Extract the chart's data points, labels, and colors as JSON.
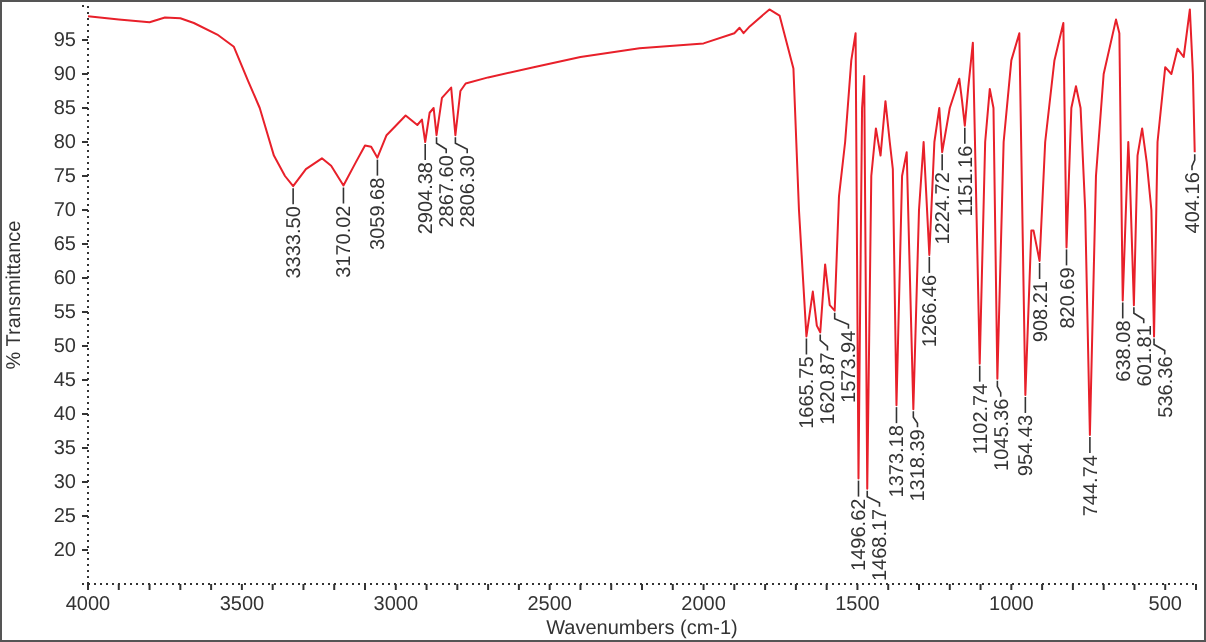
{
  "chart_data": {
    "type": "line",
    "xlabel": "Wavenumbers (cm-1)",
    "ylabel": "% Transmittance",
    "xlim": [
      4000,
      400
    ],
    "ylim": [
      15,
      100
    ],
    "xticks": [
      4000,
      {
        "value": 3900,
        "label": null
      },
      {
        "value": 3800,
        "label": null
      },
      {
        "value": 3700,
        "label": null
      },
      {
        "value": 3600,
        "label": null
      },
      3500,
      {
        "value": 3400,
        "label": null
      },
      {
        "value": 3300,
        "label": null
      },
      {
        "value": 3200,
        "label": null
      },
      {
        "value": 3100,
        "label": null
      },
      3000,
      {
        "value": 2900,
        "label": null
      },
      {
        "value": 2800,
        "label": null
      },
      {
        "value": 2700,
        "label": null
      },
      {
        "value": 2600,
        "label": null
      },
      2500,
      {
        "value": 2400,
        "label": null
      },
      {
        "value": 2300,
        "label": null
      },
      {
        "value": 2200,
        "label": null
      },
      {
        "value": 2100,
        "label": null
      },
      2000,
      {
        "value": 1900,
        "label": null
      },
      {
        "value": 1800,
        "label": null
      },
      {
        "value": 1700,
        "label": null
      },
      {
        "value": 1600,
        "label": null
      },
      1500,
      {
        "value": 1400,
        "label": null
      },
      {
        "value": 1300,
        "label": null
      },
      {
        "value": 1200,
        "label": null
      },
      {
        "value": 1100,
        "label": null
      },
      1000,
      {
        "value": 900,
        "label": null
      },
      {
        "value": 800,
        "label": null
      },
      {
        "value": 700,
        "label": null
      },
      {
        "value": 600,
        "label": null
      },
      500,
      {
        "value": 400,
        "label": null
      }
    ],
    "yticks": [
      20,
      25,
      30,
      35,
      40,
      45,
      50,
      55,
      60,
      65,
      70,
      75,
      80,
      85,
      90,
      95
    ],
    "grid": false,
    "marker": "none",
    "line_style": "solid",
    "series": [
      {
        "color": "#e8202a",
        "x": [
          4000,
          3900,
          3800,
          3750,
          3700,
          3656,
          3580,
          3526,
          3480,
          3442,
          3396,
          3360,
          3333.5,
          3292,
          3240,
          3210,
          3170.02,
          3130,
          3100,
          3080,
          3059.68,
          3030,
          3000,
          2968,
          2930,
          2915,
          2904.38,
          2890,
          2877,
          2867.6,
          2850,
          2820,
          2806.3,
          2790,
          2773,
          2700,
          2552,
          2400,
          2208,
          2000,
          1900,
          1883,
          1870,
          1850,
          1786,
          1753,
          1708,
          1690,
          1665.75,
          1645,
          1632,
          1620.87,
          1605,
          1590,
          1573.94,
          1560,
          1540,
          1520,
          1506,
          1496.62,
          1485,
          1478,
          1468.17,
          1455,
          1440,
          1425,
          1409,
          1395,
          1385,
          1373.18,
          1355,
          1340,
          1318.39,
          1300,
          1285,
          1266.46,
          1250,
          1234,
          1224.72,
          1200,
          1169,
          1160,
          1151.16,
          1140,
          1125,
          1102.74,
          1085,
          1070,
          1058,
          1045.36,
          1025,
          1000,
          974,
          954.43,
          935,
          928,
          908.21,
          890,
          860,
          831,
          820.69,
          805,
          790,
          775,
          760,
          744.74,
          725,
          700,
          660,
          649,
          638.08,
          620,
          615,
          601.81,
          590,
          575,
          560,
          545,
          536.36,
          525,
          500,
          480,
          460,
          440,
          420,
          410,
          404.16
        ],
        "values": [
          98.5,
          98,
          97.6,
          98.3,
          98.2,
          97.5,
          95.8,
          94,
          89,
          85,
          78,
          75,
          73.5,
          76,
          77.6,
          76.5,
          73.6,
          77,
          79.5,
          79.3,
          77.7,
          81,
          82.4,
          83.9,
          82.5,
          83.3,
          80,
          84.3,
          85,
          81,
          86.5,
          88,
          81,
          87.5,
          88.6,
          89.5,
          91,
          92.5,
          93.8,
          94.5,
          96,
          96.8,
          96,
          97,
          99.5,
          98.6,
          90.8,
          70,
          51.4,
          58,
          53,
          52,
          62,
          56,
          55.2,
          72,
          80,
          92,
          96,
          30.5,
          85,
          89.7,
          29,
          75,
          82,
          78,
          86,
          80,
          76,
          41.3,
          75,
          78.5,
          40.7,
          70,
          80,
          63.4,
          80,
          85,
          78.5,
          85,
          89.3,
          86,
          82.4,
          88,
          94.6,
          47.4,
          80,
          87.8,
          85,
          45.2,
          80,
          92,
          96,
          42.8,
          67,
          67,
          62.5,
          80,
          92,
          97.5,
          64.5,
          85,
          88.2,
          85,
          70,
          36.9,
          75,
          90,
          98,
          96,
          56.7,
          80,
          75,
          56,
          78,
          82,
          77,
          70,
          51.4,
          80,
          91,
          90,
          93.7,
          92.5,
          99.5,
          90,
          78.5
        ]
      }
    ],
    "annotations": [
      {
        "text": "3333.50",
        "x": 3333.5,
        "y": 73.5
      },
      {
        "text": "3170.02",
        "x": 3170.02,
        "y": 73.6
      },
      {
        "text": "3059.68",
        "x": 3059.68,
        "y": 77.7
      },
      {
        "text": "2904.38",
        "x": 2904.38,
        "y": 80
      },
      {
        "text": "2867.60",
        "x": 2867.6,
        "y": 81
      },
      {
        "text": "2806.30",
        "x": 2806.3,
        "y": 81
      },
      {
        "text": "1665.75",
        "x": 1665.75,
        "y": 51.4
      },
      {
        "text": "1620.87",
        "x": 1620.87,
        "y": 52
      },
      {
        "text": "1573.94",
        "x": 1573.94,
        "y": 55.2
      },
      {
        "text": "1496.62",
        "x": 1496.62,
        "y": 30.5
      },
      {
        "text": "1468.17",
        "x": 1468.17,
        "y": 29
      },
      {
        "text": "1373.18",
        "x": 1373.18,
        "y": 41.3
      },
      {
        "text": "1318.39",
        "x": 1318.39,
        "y": 40.7
      },
      {
        "text": "1266.46",
        "x": 1266.46,
        "y": 63.4
      },
      {
        "text": "1224.72",
        "x": 1224.72,
        "y": 78.5
      },
      {
        "text": "1151.16",
        "x": 1151.16,
        "y": 82.4
      },
      {
        "text": "1102.74",
        "x": 1102.74,
        "y": 47.4
      },
      {
        "text": "1045.36",
        "x": 1045.36,
        "y": 45.2
      },
      {
        "text": "954.43",
        "x": 954.43,
        "y": 42.8
      },
      {
        "text": "908.21",
        "x": 908.21,
        "y": 62.5
      },
      {
        "text": "820.69",
        "x": 820.69,
        "y": 64.5
      },
      {
        "text": "744.74",
        "x": 744.74,
        "y": 36.9
      },
      {
        "text": "638.08",
        "x": 638.08,
        "y": 56.7
      },
      {
        "text": "601.81",
        "x": 601.81,
        "y": 56
      },
      {
        "text": "536.36",
        "x": 536.36,
        "y": 51.4
      },
      {
        "text": "404.16",
        "x": 404.16,
        "y": 78.5
      }
    ]
  }
}
